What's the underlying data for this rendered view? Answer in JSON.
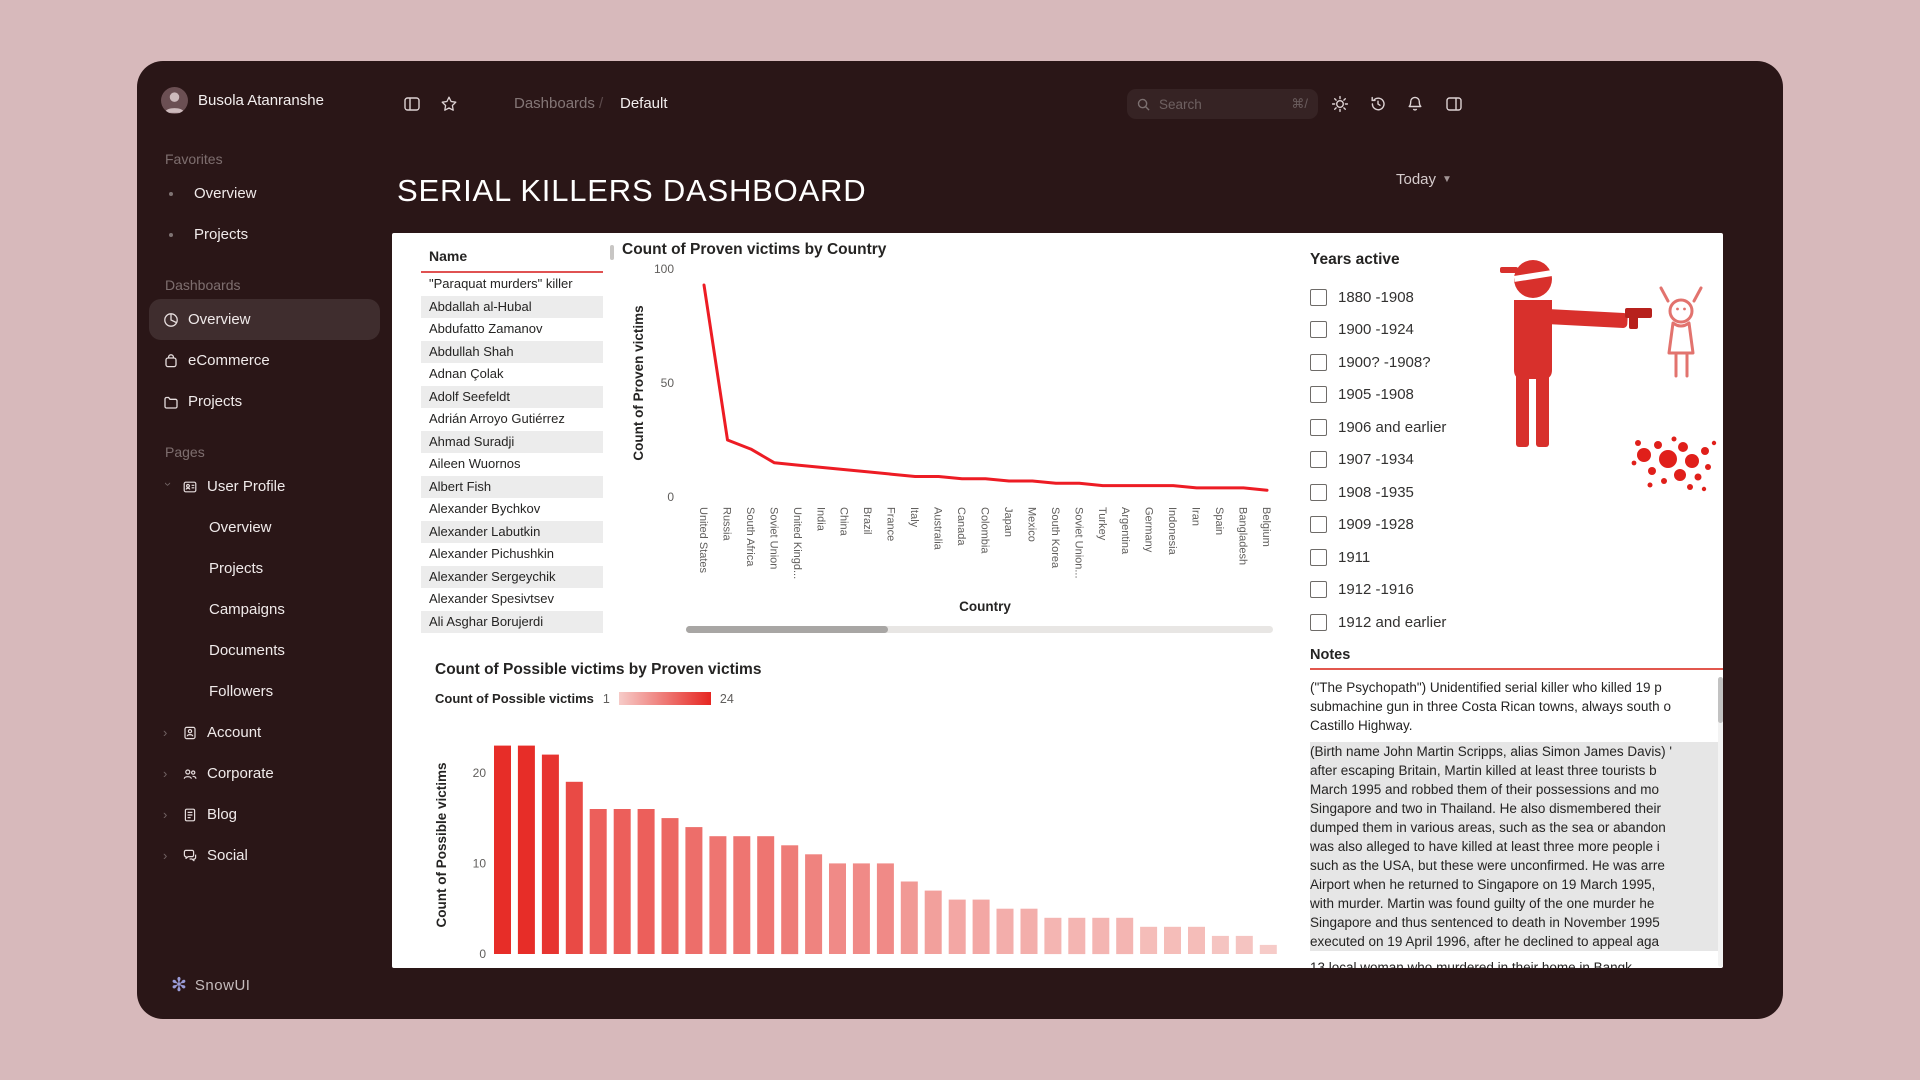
{
  "window": {
    "title": "SERIAL KILLERS DASHBOARD",
    "date_filter": "Today"
  },
  "topbar": {
    "user_name": "Busola Atanranshe",
    "breadcrumb": {
      "section": "Dashboards",
      "separator": "/",
      "page": "Default"
    },
    "search": {
      "placeholder": "Search",
      "shortcut": "⌘/"
    }
  },
  "logo": {
    "icon": "snowflake-icon",
    "text": "SnowUI"
  },
  "sidebar": {
    "sections": [
      {
        "label": "Favorites",
        "items": [
          {
            "label": "Overview",
            "bullet": true
          },
          {
            "label": "Projects",
            "bullet": true
          }
        ]
      },
      {
        "label": "Dashboards",
        "items": [
          {
            "label": "Overview",
            "icon": "pie-chart-icon",
            "active": true
          },
          {
            "label": "eCommerce",
            "icon": "shopping-bag-icon"
          },
          {
            "label": "Projects",
            "icon": "folder-icon"
          }
        ]
      },
      {
        "label": "Pages",
        "items": [
          {
            "label": "User Profile",
            "icon": "id-card-icon",
            "chevron": "down"
          },
          {
            "label": "Overview",
            "indent": true
          },
          {
            "label": "Projects",
            "indent": true
          },
          {
            "label": "Campaigns",
            "indent": true
          },
          {
            "label": "Documents",
            "indent": true
          },
          {
            "label": "Followers",
            "indent": true
          },
          {
            "label": "Account",
            "icon": "badge-icon",
            "chevron": "right"
          },
          {
            "label": "Corporate",
            "icon": "people-icon",
            "chevron": "right"
          },
          {
            "label": "Blog",
            "icon": "document-icon",
            "chevron": "right"
          },
          {
            "label": "Social",
            "icon": "chat-icon",
            "chevron": "right"
          }
        ]
      }
    ]
  },
  "panel": {
    "name_list": {
      "header": "Name",
      "rows": [
        "\"Paraquat murders\" killer",
        "Abdallah al-Hubal",
        "Abdufatto Zamanov",
        "Abdullah Shah",
        "Adnan Çolak",
        "Adolf Seefeldt",
        "Adrián Arroyo Gutiérrez",
        "Ahmad Suradji",
        "Aileen Wuornos",
        "Albert Fish",
        "Alexander Bychkov",
        "Alexander Labutkin",
        "Alexander Pichushkin",
        "Alexander Sergeychik",
        "Alexander Spesivtsev",
        "Ali Asghar Borujerdi"
      ]
    },
    "years_active": {
      "title": "Years active",
      "options": [
        "1880 -1908",
        "1900 -1924",
        "1900? -1908?",
        "1905 -1908",
        "1906 and earlier",
        "1907 -1934",
        "1908 -1935",
        "1909 -1928",
        "1911",
        "1912 -1916",
        "1912 and earlier"
      ]
    },
    "notes": {
      "title": "Notes",
      "paragraphs": [
        {
          "highlight": false,
          "lines": [
            "(\"The Psychopath\") Unidentified serial killer who killed 19 p",
            "submachine gun in three Costa Rican towns, always south o",
            "Castillo Highway."
          ]
        },
        {
          "highlight": true,
          "lines": [
            "(Birth name John Martin Scripps, alias Simon James Davis) '",
            "after escaping Britain, Martin killed at least three tourists b",
            "March 1995 and robbed them of their possessions and mo",
            "Singapore and two in Thailand. He also dismembered their",
            "dumped them in various areas, such as the sea or abandon",
            "was also alleged to have killed at least three more people i",
            "such as the USA, but these were unconfirmed. He was arre",
            "Airport when he returned to Singapore on 19 March 1995,",
            "with murder. Martin was found guilty of the one murder he",
            "Singapore and thus sentenced to death in November 1995",
            "executed on 19 April 1996, after he declined to appeal aga"
          ]
        },
        {
          "highlight": false,
          "lines": [
            "13 local woman who murdered in their home in Bangk"
          ]
        }
      ]
    }
  },
  "chart_data": [
    {
      "type": "line",
      "title": "Count of Proven victims by Country",
      "xlabel": "Country",
      "ylabel": "Count of Proven victims",
      "ylim": [
        0,
        100
      ],
      "yticks": [
        0,
        50,
        100
      ],
      "categories": [
        "United States",
        "Russia",
        "South Africa",
        "Soviet Union",
        "United Kingd...",
        "India",
        "China",
        "Brazil",
        "France",
        "Italy",
        "Australia",
        "Canada",
        "Colombia",
        "Japan",
        "Mexico",
        "South Korea",
        "Soviet Union...",
        "Turkey",
        "Argentina",
        "Germany",
        "Indonesia",
        "Iran",
        "Spain",
        "Bangladesh",
        "Belgium"
      ],
      "values": [
        93,
        25,
        21,
        15,
        14,
        13,
        12,
        11,
        10,
        9,
        9,
        8,
        8,
        7,
        7,
        6,
        6,
        5,
        5,
        5,
        5,
        4,
        4,
        4,
        3
      ],
      "line_color": "#ed1c24",
      "grid": false,
      "legend_position": "none"
    },
    {
      "type": "bar",
      "title": "Count of Possible victims by Proven victims",
      "ylabel": "Count of Possible victims",
      "ylim": [
        0,
        24
      ],
      "yticks": [
        0,
        10,
        20
      ],
      "legend": {
        "label": "Count of Possible victims",
        "min": 1,
        "max": 24
      },
      "values": [
        23,
        23,
        22,
        19,
        16,
        16,
        16,
        15,
        14,
        13,
        13,
        13,
        12,
        11,
        10,
        10,
        10,
        8,
        7,
        6,
        6,
        5,
        5,
        4,
        4,
        4,
        4,
        3,
        3,
        3,
        2,
        2,
        1
      ],
      "color_low": "#f6cbc8",
      "color_high": "#e62621",
      "grid": "dashed-horizontal"
    }
  ]
}
